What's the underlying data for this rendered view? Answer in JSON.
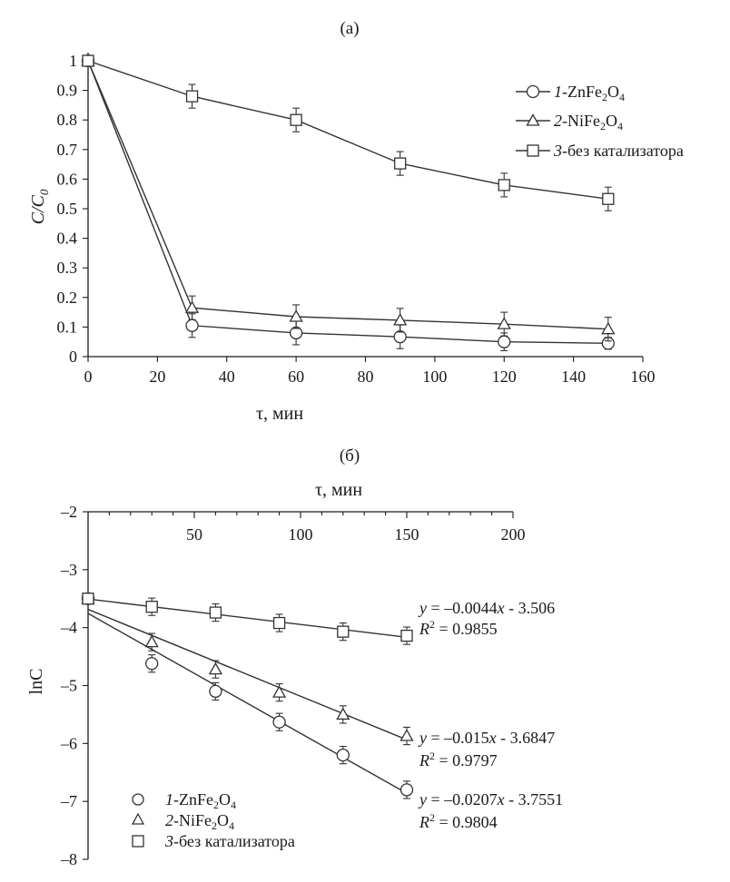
{
  "chart_data": [
    {
      "type": "line",
      "panel_label": "(а)",
      "xlabel": "τ, мин",
      "ylabel_main": "C",
      "ylabel_sep": "/",
      "ylabel_sub_main": "C",
      "ylabel_sub": "0",
      "xlim": [
        0,
        160
      ],
      "ylim": [
        0,
        1
      ],
      "x_ticks": [
        0,
        20,
        40,
        60,
        80,
        100,
        120,
        140,
        160
      ],
      "y_ticks": [
        0,
        0.1,
        0.2,
        0.3,
        0.4,
        0.5,
        0.6,
        0.7,
        0.8,
        0.9,
        1
      ],
      "x_tick_labels": [
        "0",
        "20",
        "40",
        "60",
        "80",
        "100",
        "120",
        "140",
        "160"
      ],
      "y_tick_labels": [
        "0",
        "0.1",
        "0.2",
        "0.3",
        "0.4",
        "0.5",
        "0.6",
        "0.7",
        "0.8",
        "0.9",
        "1"
      ],
      "x": [
        0,
        30,
        60,
        90,
        120,
        150
      ],
      "legend_position": "top-right",
      "series": [
        {
          "name": "1-ZnFe2O4",
          "legend_num": "1",
          "legend_text": "-ZnFe",
          "legend_sub1": "2",
          "legend_mid": "O",
          "legend_sub2": "4",
          "marker": "circle",
          "values": [
            1.0,
            0.105,
            0.08,
            0.067,
            0.05,
            0.045
          ],
          "errors": [
            0,
            0.04,
            0.04,
            0.04,
            0.03,
            0.02
          ]
        },
        {
          "name": "2-NiFe2O4",
          "legend_num": "2",
          "legend_text": "-NiFe",
          "legend_sub1": "2",
          "legend_mid": "O",
          "legend_sub2": "4",
          "marker": "triangle",
          "values": [
            1.0,
            0.165,
            0.135,
            0.123,
            0.11,
            0.093
          ],
          "errors": [
            0,
            0.04,
            0.04,
            0.04,
            0.04,
            0.04
          ]
        },
        {
          "name": "3-без катализатора",
          "legend_num": "3",
          "legend_text": "-без катализатора",
          "marker": "square",
          "values": [
            1.0,
            0.88,
            0.8,
            0.653,
            0.58,
            0.533
          ],
          "errors": [
            0,
            0.04,
            0.04,
            0.04,
            0.04,
            0.04
          ]
        }
      ]
    },
    {
      "type": "scatter",
      "panel_label": "(б)",
      "xlabel": "τ, мин",
      "ylabel": "lnC",
      "xlim": [
        0,
        200
      ],
      "ylim": [
        -8,
        -2
      ],
      "x_ticks": [
        50,
        100,
        150,
        200
      ],
      "y_ticks": [
        -2,
        -3,
        -4,
        -5,
        -6,
        -7,
        -8
      ],
      "x_tick_labels": [
        "50",
        "100",
        "150",
        "200"
      ],
      "y_tick_labels": [
        "–2",
        "–3",
        "–4",
        "–5",
        "–6",
        "–7",
        "–8"
      ],
      "x_axis_position": "top",
      "x": [
        0,
        30,
        60,
        90,
        120,
        150
      ],
      "legend_position": "bottom-left",
      "series": [
        {
          "name": "1-ZnFe2O4",
          "legend_num": "1",
          "legend_text": "-ZnFe",
          "legend_sub1": "2",
          "legend_mid": "O",
          "legend_sub2": "4",
          "marker": "circle",
          "values": [
            -3.5,
            -4.62,
            -5.1,
            -5.63,
            -6.2,
            -6.8
          ],
          "errors": [
            0,
            0.15,
            0.15,
            0.15,
            0.15,
            0.15
          ],
          "fit": {
            "slope": -0.0207,
            "intercept": -3.7551
          },
          "equation_y": "y",
          "equation_mid": " = –0.0207",
          "equation_x": "x",
          "equation_rest": " - 3.7551",
          "r2_R": "R",
          "r2_sup": "2",
          "r2_value": " = 0.9804"
        },
        {
          "name": "2-NiFe2O4",
          "legend_num": "2",
          "legend_text": "-NiFe",
          "legend_sub1": "2",
          "legend_mid": "O",
          "legend_sub2": "4",
          "marker": "triangle",
          "values": [
            -3.5,
            -4.25,
            -4.72,
            -5.12,
            -5.5,
            -5.87
          ],
          "errors": [
            0,
            0.15,
            0.15,
            0.15,
            0.15,
            0.15
          ],
          "fit": {
            "slope": -0.015,
            "intercept": -3.6847
          },
          "equation_y": "y",
          "equation_mid": " = –0.015",
          "equation_x": "x",
          "equation_rest": " - 3.6847",
          "r2_R": "R",
          "r2_sup": "2",
          "r2_value": " = 0.9797"
        },
        {
          "name": "3-без катализатора",
          "legend_num": "3",
          "legend_text": "-без катализатора",
          "marker": "square",
          "values": [
            -3.5,
            -3.64,
            -3.74,
            -3.92,
            -4.07,
            -4.14
          ],
          "errors": [
            0,
            0.15,
            0.15,
            0.15,
            0.15,
            0.15
          ],
          "fit": {
            "slope": -0.0044,
            "intercept": -3.506
          },
          "equation_y": "y",
          "equation_mid": " = –0.0044",
          "equation_x": "x",
          "equation_rest": " - 3.506",
          "r2_R": "R",
          "r2_sup": "2",
          "r2_value": " = 0.9855"
        }
      ]
    }
  ]
}
